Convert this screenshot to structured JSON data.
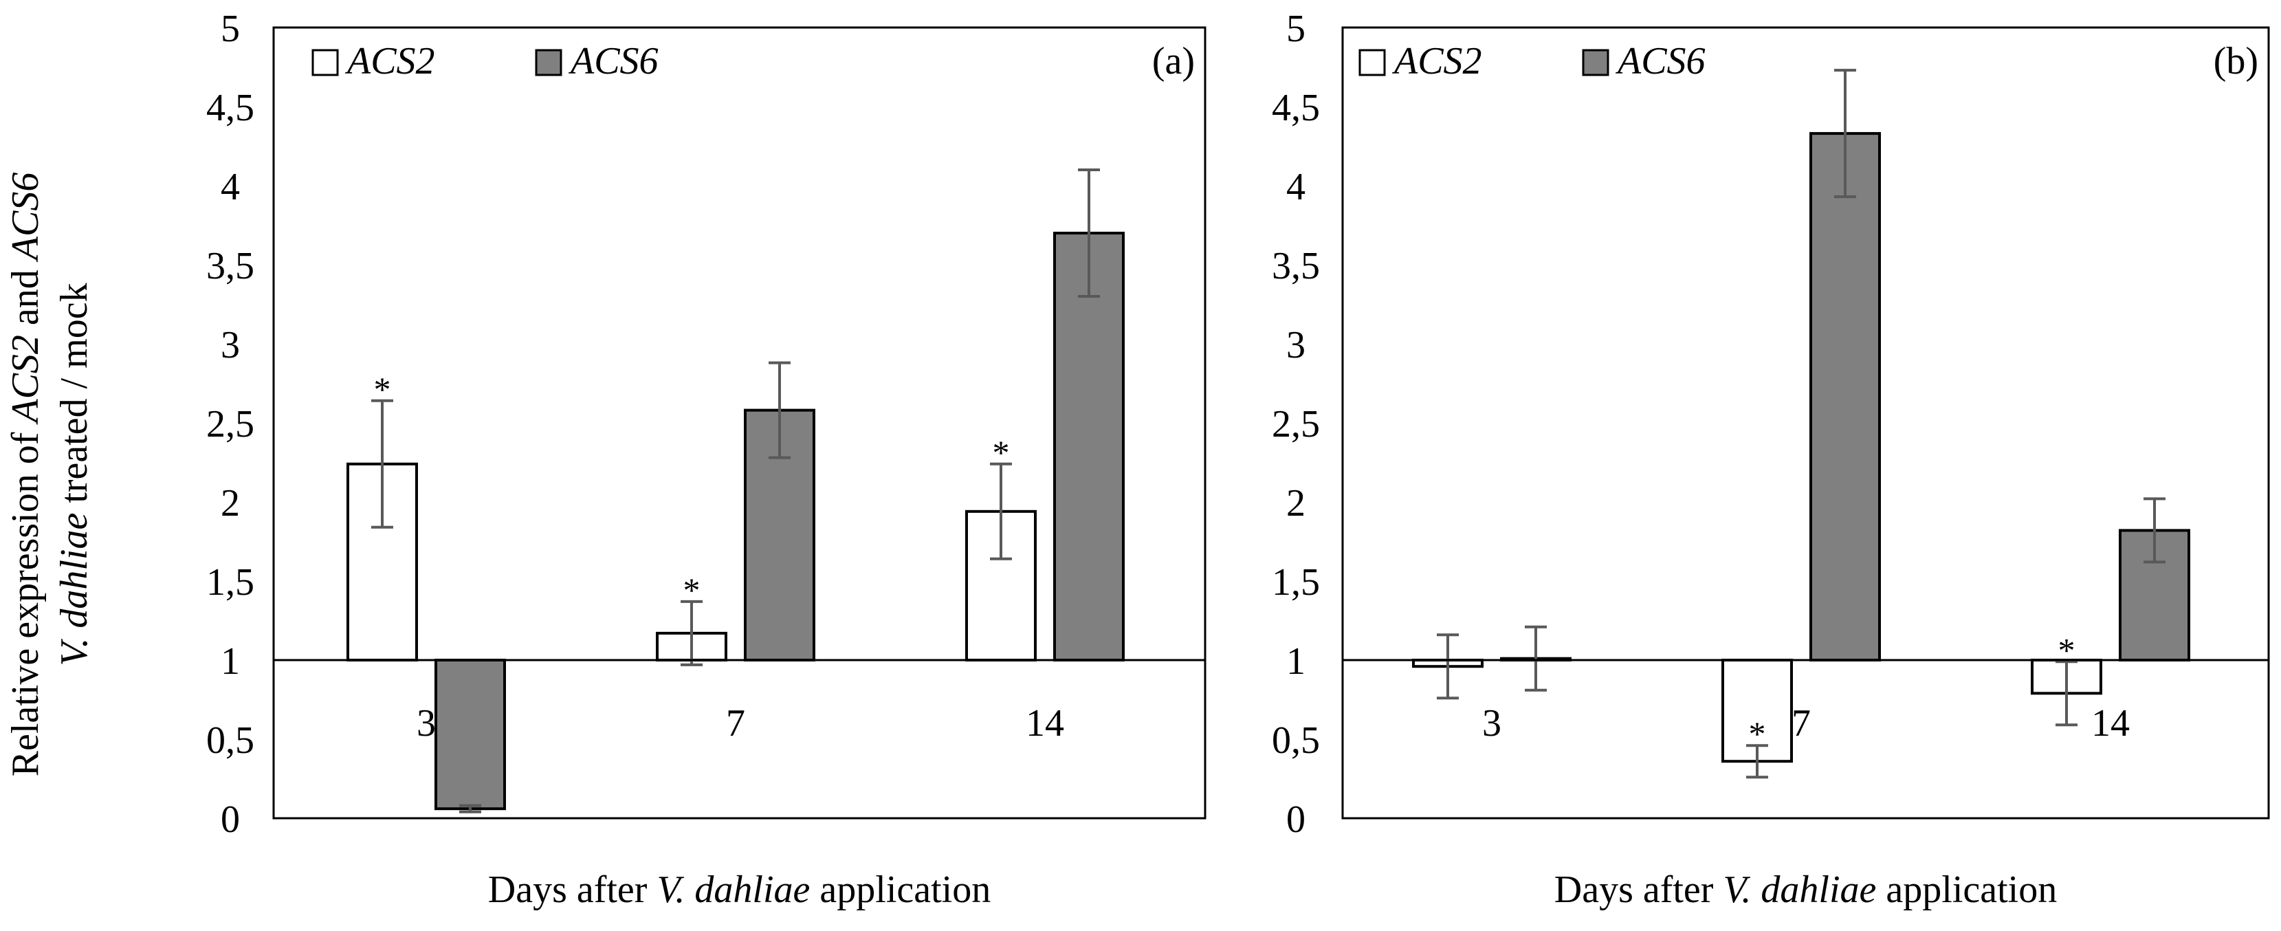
{
  "y_axis_label": {
    "line1": "Relative expression of ACS2 and ACS6",
    "line2": "V. dahliae treated / mock"
  },
  "y_tick_labels": [
    "0",
    "0,5",
    "1",
    "1,5",
    "2",
    "2,5",
    "3",
    "3,5",
    "4",
    "4,5",
    "5"
  ],
  "colors": {
    "acs2": "#ffffff",
    "acs6": "#808080",
    "axis": "#000000",
    "error": "#595959"
  },
  "chart_data": [
    {
      "type": "bar",
      "panel": "(a)",
      "title": "",
      "xlabel": "Days after V. dahliae application",
      "ylabel": "Relative expression of ACS2 and ACS6 V. dahliae treated / mock",
      "ylim": [
        0,
        5
      ],
      "baseline": 1,
      "categories": [
        "3",
        "7",
        "14"
      ],
      "legend_position": "top-left",
      "series": [
        {
          "name": "ACS2",
          "values": [
            2.24,
            1.17,
            1.94
          ],
          "errors": [
            0.4,
            0.2,
            0.3
          ],
          "significant": [
            true,
            true,
            true
          ]
        },
        {
          "name": "ACS6",
          "values": [
            0.06,
            2.58,
            3.7
          ],
          "errors": [
            0.02,
            0.3,
            0.4
          ],
          "significant": [
            false,
            false,
            false
          ]
        }
      ]
    },
    {
      "type": "bar",
      "panel": "(b)",
      "title": "",
      "xlabel": "Days after V. dahliae application",
      "ylabel": "",
      "ylim": [
        0,
        5
      ],
      "baseline": 1,
      "categories": [
        "3",
        "7",
        "14"
      ],
      "legend_position": "top-left",
      "series": [
        {
          "name": "ACS2",
          "values": [
            0.96,
            0.36,
            0.79
          ],
          "errors": [
            0.2,
            0.1,
            0.2
          ],
          "significant": [
            false,
            true,
            true
          ]
        },
        {
          "name": "ACS6",
          "values": [
            1.01,
            4.33,
            1.82
          ],
          "errors": [
            0.2,
            0.4,
            0.2
          ],
          "significant": [
            false,
            false,
            false
          ]
        }
      ]
    }
  ]
}
